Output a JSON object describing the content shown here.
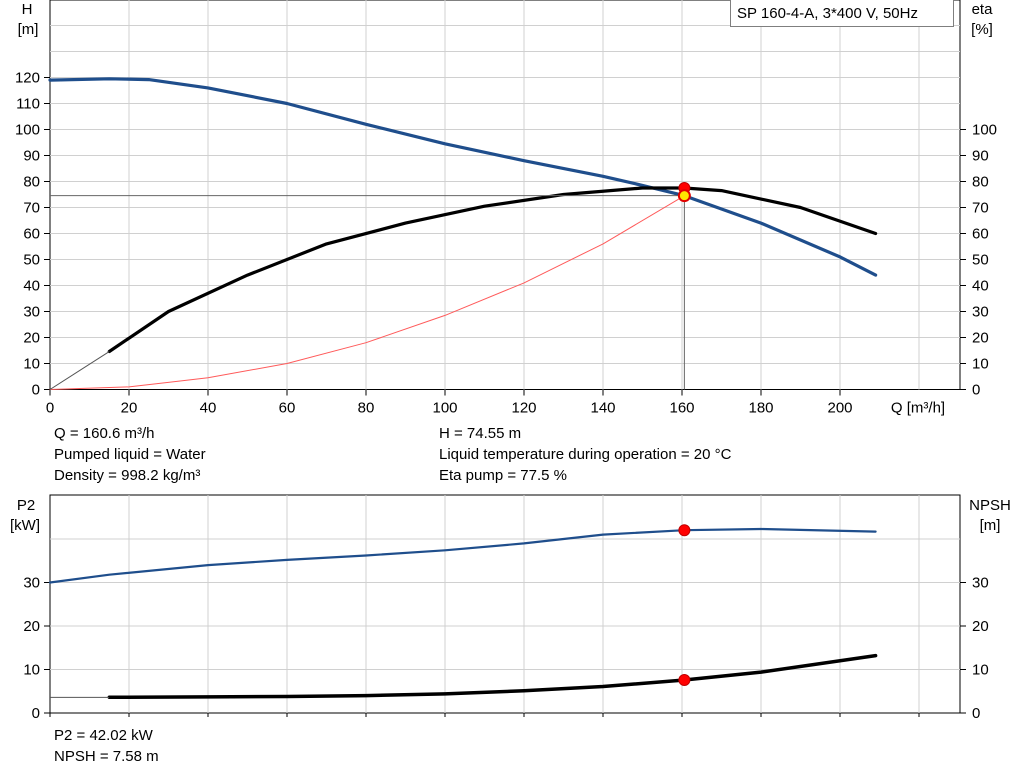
{
  "legend_title": "SP 160-4-A, 3*400 V, 50Hz",
  "info_top": {
    "q": "Q = 160.6 m³/h",
    "liquid": "Pumped liquid = Water",
    "density": "Density = 998.2 kg/m³",
    "h": "H = 74.55 m",
    "temp": "Liquid temperature during operation = 20 °C",
    "eta": "Eta pump = 77.5 %"
  },
  "info_bottom": {
    "p2": "P2 = 42.02 kW",
    "npsh": "NPSH = 7.58 m"
  },
  "chart_data": [
    {
      "type": "line",
      "xlabel": "Q [m³/h]",
      "ylabel": "H\n[m]",
      "ylabel_right": "eta\n[%]",
      "xlim": [
        0,
        230
      ],
      "ylim": [
        0,
        150
      ],
      "xticks": [
        0,
        20,
        40,
        60,
        80,
        100,
        120,
        140,
        160,
        180,
        200
      ],
      "yticks_left": [
        0,
        10,
        20,
        30,
        40,
        50,
        60,
        70,
        80,
        90,
        100,
        110,
        120
      ],
      "yticks_right": [
        0,
        10,
        20,
        30,
        40,
        50,
        60,
        70,
        80,
        90,
        100
      ],
      "grid": true,
      "series": [
        {
          "color": "#1f4e8c",
          "x": [
            0,
            15,
            25,
            40,
            60,
            80,
            100,
            120,
            140,
            150,
            160.6,
            180,
            200,
            209
          ],
          "y": [
            119,
            119.5,
            119.2,
            116,
            110,
            102,
            94.5,
            88,
            82,
            78.5,
            74.55,
            64,
            51,
            44
          ]
        },
        {
          "color": "#000000",
          "x": [
            15,
            30,
            50,
            70,
            90,
            110,
            130,
            150,
            160.6,
            170,
            190,
            209
          ],
          "y": [
            14.6,
            30,
            44,
            56,
            64,
            70.5,
            75,
            77.5,
            77.5,
            76.5,
            70,
            60
          ]
        },
        {
          "color": "#ff5a5a",
          "x": [
            0,
            20,
            40,
            60,
            80,
            100,
            120,
            140,
            160.6
          ],
          "y": [
            0,
            1,
            4.5,
            10,
            18,
            28.5,
            41,
            56,
            74.55
          ]
        }
      ],
      "operating_point": {
        "q": 160.6,
        "h": 74.55,
        "eta": 77.5
      }
    },
    {
      "type": "line",
      "ylabel": "P2\n[kW]",
      "ylabel_right": "NPSH\n[m]",
      "xlim": [
        0,
        230
      ],
      "ylim": [
        0,
        45
      ],
      "yticks_left": [
        0,
        10,
        20,
        30
      ],
      "yticks_right": [
        0,
        10,
        20,
        30
      ],
      "grid": true,
      "series": [
        {
          "color": "#1f4e8c",
          "x": [
            0,
            15,
            40,
            60,
            80,
            100,
            120,
            140,
            160.6,
            180,
            209
          ],
          "y": [
            30,
            31.8,
            34,
            35.2,
            36.2,
            37.4,
            39,
            41,
            42.02,
            42.3,
            41.7
          ]
        },
        {
          "color": "#000000",
          "x": [
            15,
            40,
            60,
            80,
            100,
            120,
            140,
            160.6,
            180,
            209
          ],
          "y": [
            3.6,
            3.7,
            3.8,
            4.0,
            4.4,
            5.1,
            6.1,
            7.58,
            9.4,
            13.2
          ]
        }
      ],
      "operating_point": {
        "q": 160.6,
        "p2": 42.02,
        "npsh": 7.58
      }
    }
  ]
}
